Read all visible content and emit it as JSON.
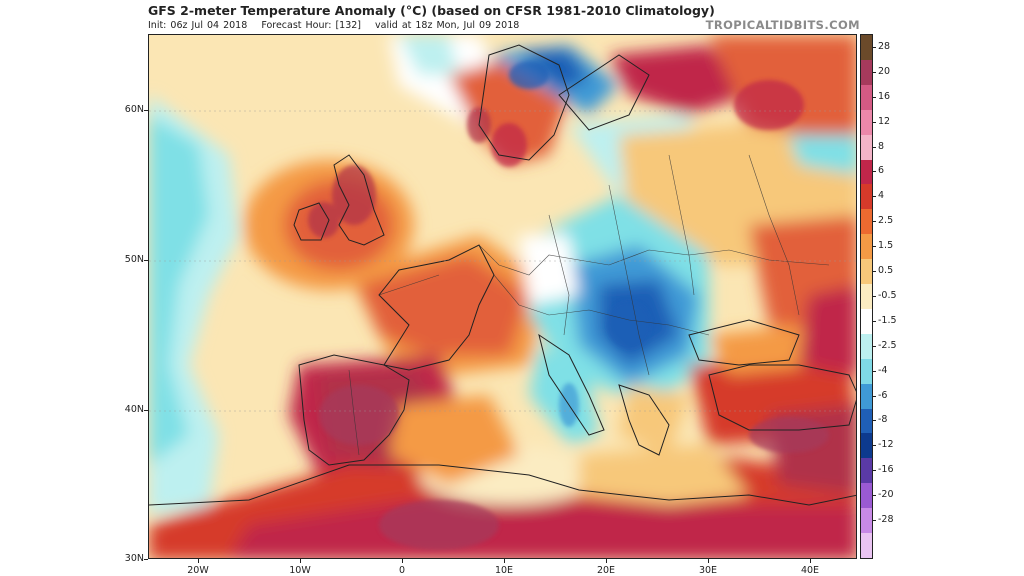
{
  "title": "GFS 2-meter Temperature Anomaly (°C) (based on CFSR 1981-2010 Climatology)",
  "subtitle": {
    "init": "Init: 06z Jul 04 2018",
    "forecast_hour": "Forecast Hour: [132]",
    "valid": "valid at 18z Mon, Jul 09 2018"
  },
  "brand": "TROPICALTIDBITS.COM",
  "map": {
    "lat_labels": [
      "60N",
      "50N",
      "40N",
      "30N"
    ],
    "lon_labels": [
      "20W",
      "10W",
      "0",
      "10E",
      "20E",
      "30E",
      "40E"
    ],
    "lat_range": [
      30,
      65
    ],
    "lon_range": [
      -25,
      45
    ]
  },
  "colorbar": {
    "labels": [
      "28",
      "20",
      "16",
      "12",
      "8",
      "6",
      "4",
      "2.5",
      "1.5",
      "0.5",
      "-0.5",
      "-1.5",
      "-2.5",
      "-4",
      "-6",
      "-8",
      "-12",
      "-16",
      "-20",
      "-28"
    ],
    "colors": [
      "#6b4a2a",
      "#a63a5c",
      "#d45a84",
      "#ec88aa",
      "#f4b4c8",
      "#c0264a",
      "#d63a2a",
      "#ec6a30",
      "#f49a45",
      "#f7c87a",
      "#fbecc2",
      "#ffffff",
      "#bdf0f0",
      "#7fd9e6",
      "#3f9ad6",
      "#1f5fb6",
      "#0d3a8e",
      "#5a3aa6",
      "#9a5ad2",
      "#c88ae6",
      "#eac4f2"
    ]
  },
  "colors": {
    "ocean": "#fbe6b4",
    "land_warm": "#e2603a",
    "land_hot": "#b0324a",
    "cool": "#5aa6dc",
    "cold": "#2f63b6",
    "cyan": "#7fe0e6"
  }
}
